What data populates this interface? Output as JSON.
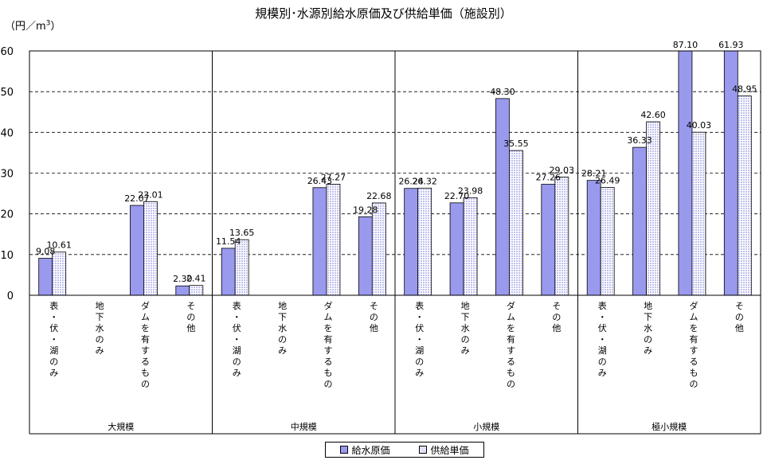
{
  "chart_data": {
    "type": "bar",
    "title": "規模別･水源別給水原価及び供給単価（施設別）",
    "ylabel_prefix": "（円／m",
    "ylabel_sup": "3",
    "ylabel_suffix": "）",
    "ylim": [
      0,
      60
    ],
    "yticks": [
      0,
      10,
      20,
      30,
      40,
      50,
      60
    ],
    "grid": true,
    "legend_position": "bottom-center",
    "groups": [
      "大規模",
      "中規模",
      "小規模",
      "極小規模"
    ],
    "categories": [
      "表・伏・湖のみ",
      "地下水のみ",
      "ダムを有するもの",
      "その他"
    ],
    "series": [
      {
        "name": "給水原価",
        "color": "#9999ee",
        "values": [
          [
            9.08,
            null,
            22.07,
            2.3
          ],
          [
            11.54,
            null,
            26.43,
            19.28
          ],
          [
            26.24,
            22.7,
            48.3,
            27.26
          ],
          [
            28.21,
            36.33,
            87.1,
            61.93
          ]
        ],
        "labels": [
          [
            "9.08",
            "",
            "22.07",
            "2.30"
          ],
          [
            "11.54",
            "",
            "26.43",
            "19.28"
          ],
          [
            "26.24",
            "22.70",
            "48.30",
            "27.26"
          ],
          [
            "28.21",
            "36.33",
            "87.10",
            "61.93"
          ]
        ]
      },
      {
        "name": "供給単価",
        "color": "#c8c8f0",
        "values": [
          [
            10.61,
            null,
            23.01,
            2.41
          ],
          [
            13.65,
            null,
            27.27,
            22.68
          ],
          [
            26.32,
            23.98,
            35.55,
            29.03
          ],
          [
            26.49,
            42.6,
            40.03,
            48.95
          ]
        ],
        "labels": [
          [
            "10.61",
            "",
            "23.01",
            "2.41"
          ],
          [
            "13.65",
            "",
            "27.27",
            "22.68"
          ],
          [
            "26.32",
            "23.98",
            "35.55",
            "29.03"
          ],
          [
            "26.49",
            "42.60",
            "40.03",
            "48.95"
          ]
        ]
      }
    ]
  }
}
